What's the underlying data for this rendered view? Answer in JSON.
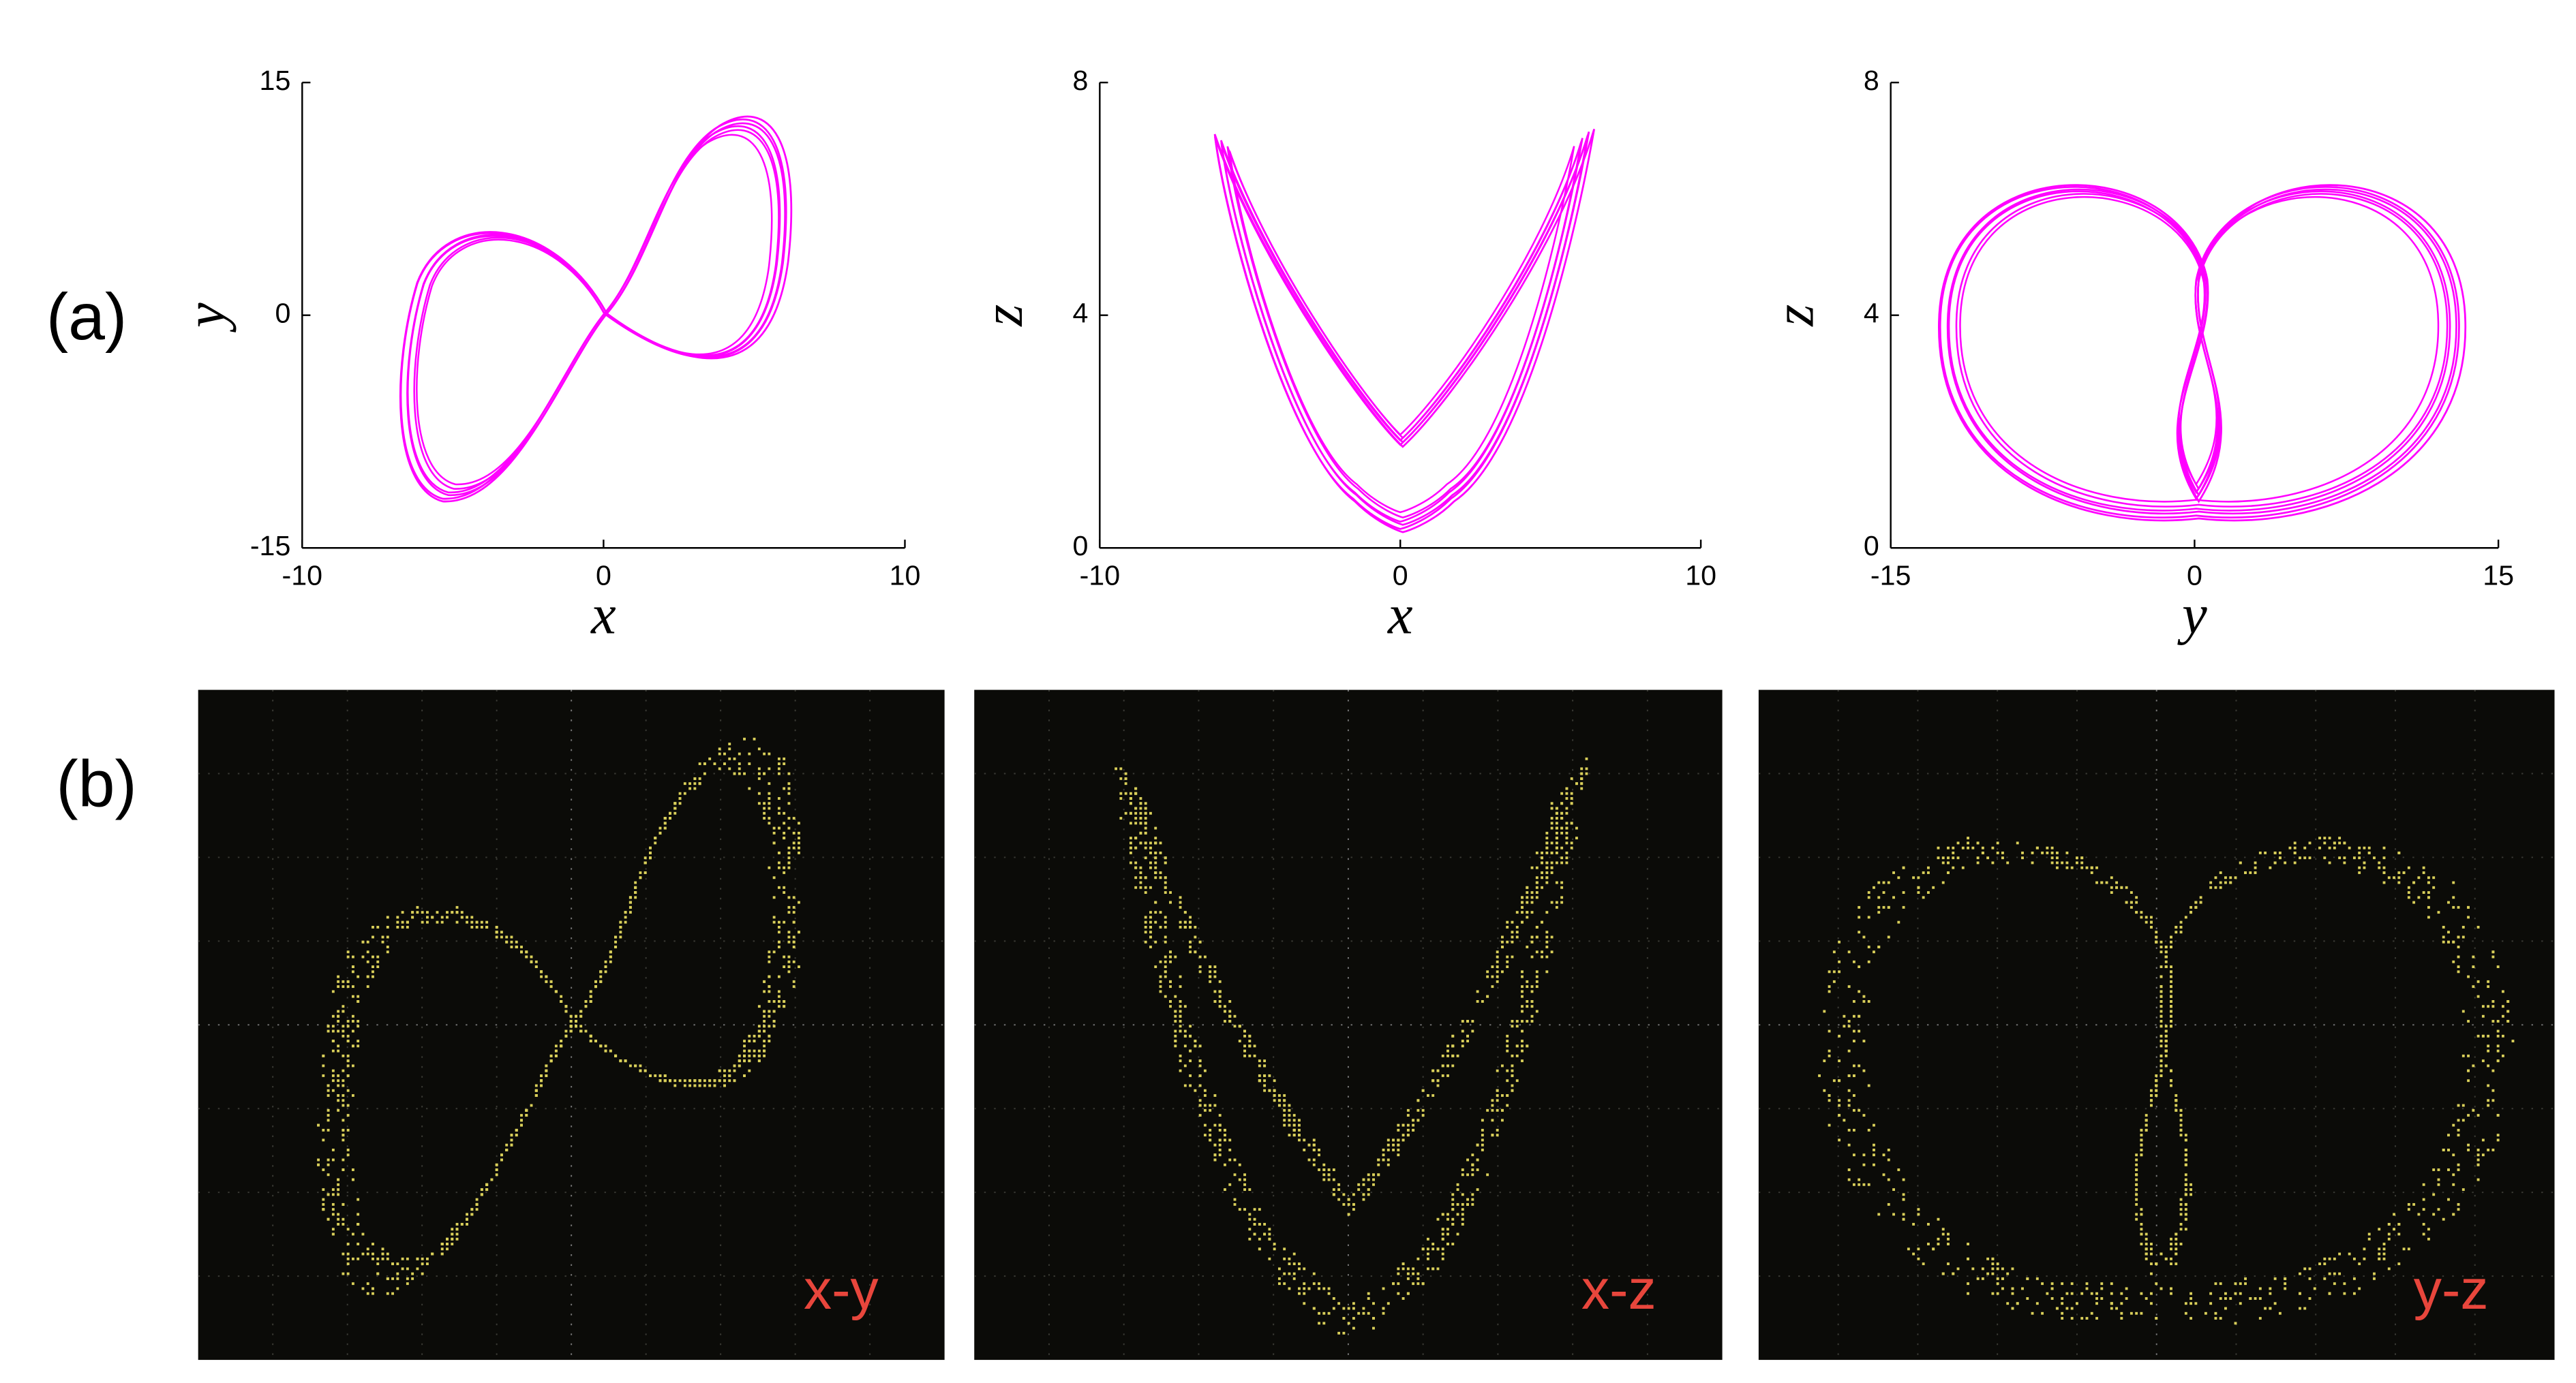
{
  "figure": {
    "panel_labels": [
      "(a)",
      "(b)"
    ],
    "charts": [
      {
        "type": "line",
        "xlabel": "x",
        "ylabel": "y",
        "xlim": [
          -10,
          10
        ],
        "ylim": [
          -15,
          15
        ],
        "xticks": [
          -10,
          0,
          10
        ],
        "yticks": [
          -15,
          0,
          15
        ]
      },
      {
        "type": "line",
        "xlabel": "x",
        "ylabel": "z",
        "xlim": [
          -10,
          10
        ],
        "ylim": [
          0,
          8
        ],
        "xticks": [
          -10,
          0,
          10
        ],
        "yticks": [
          0,
          4,
          8
        ]
      },
      {
        "type": "line",
        "xlabel": "y",
        "ylabel": "z",
        "xlim": [
          -15,
          15
        ],
        "ylim": [
          0,
          8
        ],
        "xticks": [
          -15,
          0,
          15
        ],
        "yticks": [
          0,
          4,
          8
        ]
      }
    ],
    "scope_labels": [
      "x-y",
      "x-z",
      "y-z"
    ]
  }
}
